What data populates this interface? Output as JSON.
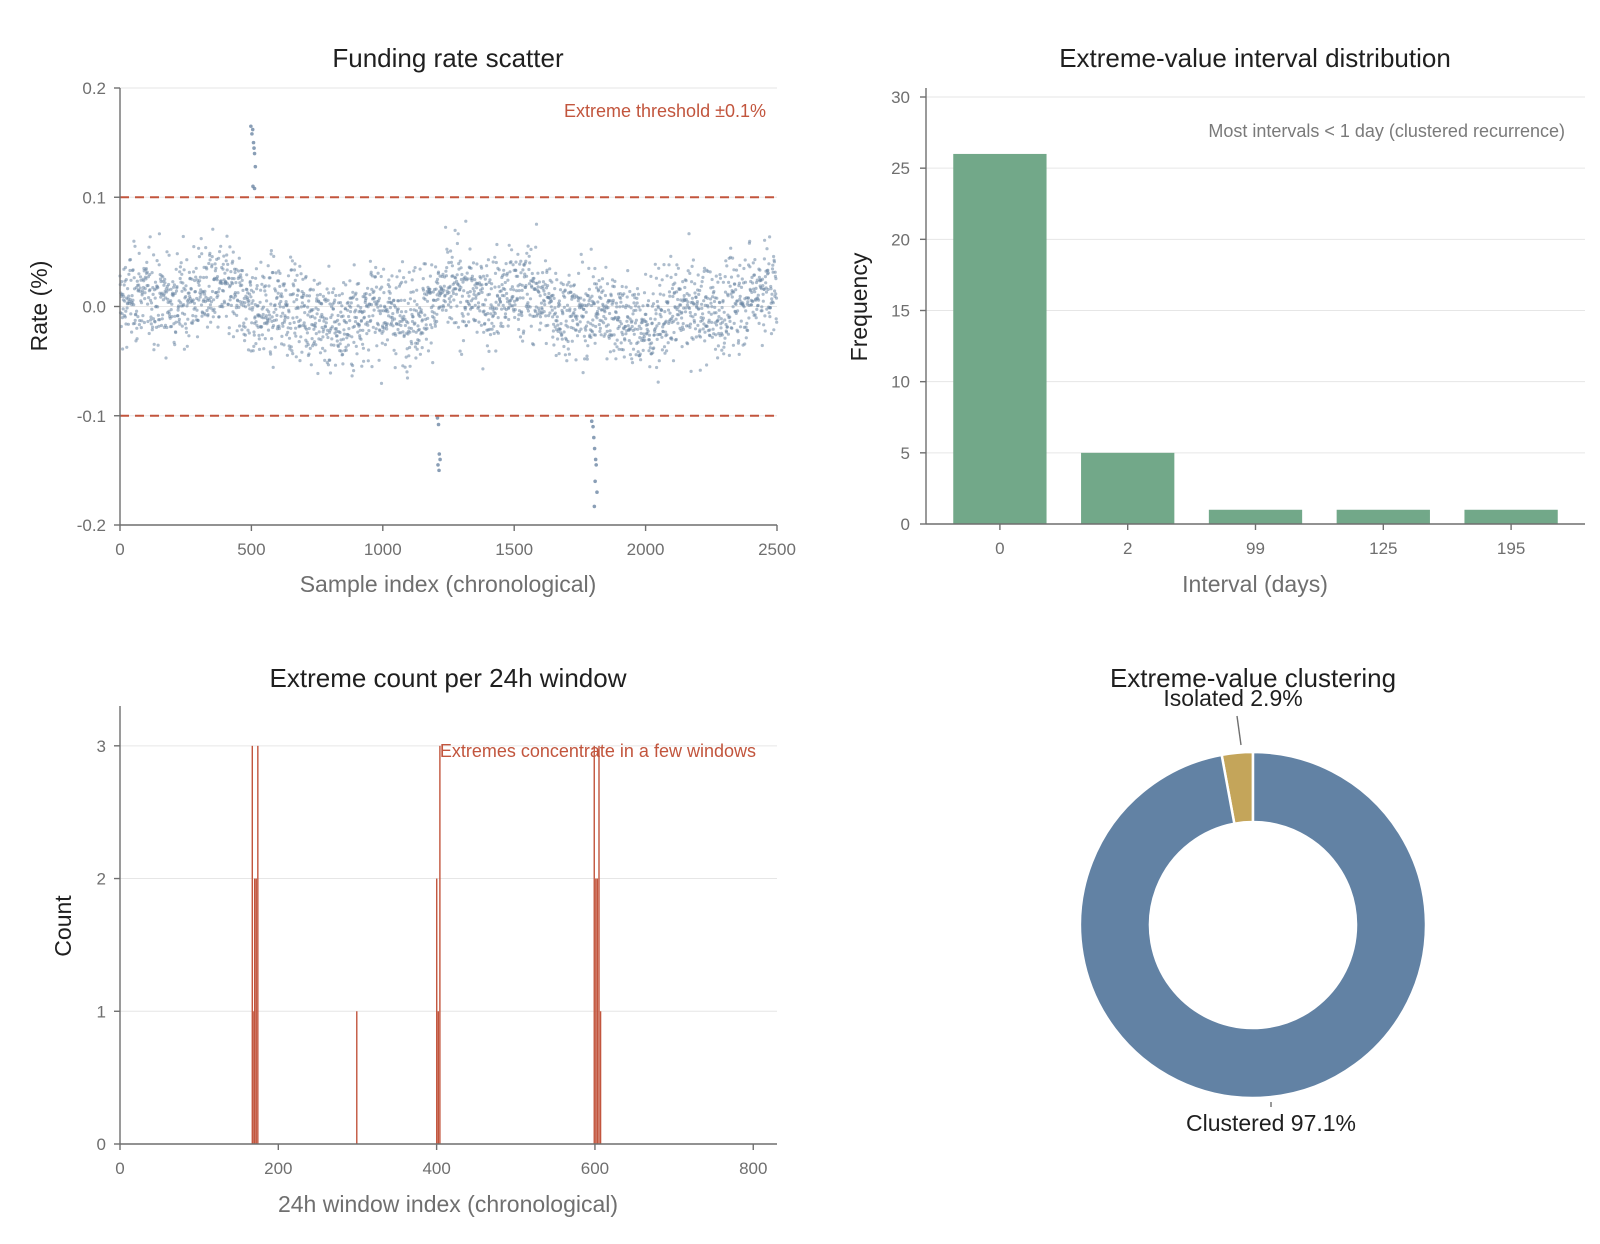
{
  "colors": {
    "scatter": "#6b86a4",
    "threshold": "#c2553d",
    "bar_green": "#72a889",
    "window_bar": "#c2553d",
    "pie_clustered": "#6282a4",
    "pie_isolated": "#c4a55a"
  },
  "chart_data": [
    {
      "type": "scatter",
      "title": "Funding rate scatter",
      "xlabel": "Sample index (chronological)",
      "ylabel": "Rate (%)",
      "xlim": [
        0,
        2500
      ],
      "ylim": [
        -0.2,
        0.2
      ],
      "xticks": [
        "0",
        "500",
        "1000",
        "1500",
        "2000",
        "2500"
      ],
      "yticks": [
        "-0.2",
        "-0.1",
        "0.0",
        "0.1",
        "0.2"
      ],
      "threshold": [
        0.1,
        -0.1
      ],
      "annotation": "Extreme threshold ±0.1%",
      "extreme_points": [
        {
          "x": 498,
          "y": 0.165
        },
        {
          "x": 502,
          "y": 0.158
        },
        {
          "x": 505,
          "y": 0.162
        },
        {
          "x": 508,
          "y": 0.15
        },
        {
          "x": 510,
          "y": 0.145
        },
        {
          "x": 512,
          "y": 0.14
        },
        {
          "x": 515,
          "y": 0.128
        },
        {
          "x": 506,
          "y": 0.11
        },
        {
          "x": 512,
          "y": 0.108
        },
        {
          "x": 1208,
          "y": -0.102
        },
        {
          "x": 1212,
          "y": -0.108
        },
        {
          "x": 1215,
          "y": -0.135
        },
        {
          "x": 1218,
          "y": -0.14
        },
        {
          "x": 1210,
          "y": -0.145
        },
        {
          "x": 1214,
          "y": -0.15
        },
        {
          "x": 1795,
          "y": -0.105
        },
        {
          "x": 1800,
          "y": -0.11
        },
        {
          "x": 1803,
          "y": -0.12
        },
        {
          "x": 1806,
          "y": -0.13
        },
        {
          "x": 1810,
          "y": -0.14
        },
        {
          "x": 1812,
          "y": -0.145
        },
        {
          "x": 1808,
          "y": -0.16
        },
        {
          "x": 1815,
          "y": -0.17
        },
        {
          "x": 1805,
          "y": -0.183
        }
      ],
      "background_points": "approx. 2500 samples, mostly within ±0.06"
    },
    {
      "type": "bar",
      "title": "Extreme-value interval distribution",
      "xlabel": "Interval (days)",
      "ylabel": "Frequency",
      "categories": [
        "0",
        "2",
        "99",
        "125",
        "195"
      ],
      "values": [
        26,
        5,
        1,
        1,
        1
      ],
      "ylim": [
        0,
        30
      ],
      "yticks": [
        "0",
        "5",
        "10",
        "15",
        "20",
        "25",
        "30"
      ],
      "annotation": "Most intervals < 1 day (clustered recurrence)"
    },
    {
      "type": "bar",
      "title": "Extreme count per 24h window",
      "xlabel": "24h window index (chronological)",
      "ylabel": "Count",
      "xlim": [
        0,
        830
      ],
      "ylim": [
        0,
        3.3
      ],
      "xticks": [
        "0",
        "200",
        "400",
        "600",
        "800"
      ],
      "yticks": [
        "0",
        "1",
        "2",
        "3"
      ],
      "annotation": "Extremes concentrate in a few windows",
      "points": [
        {
          "x": 167,
          "y": 3
        },
        {
          "x": 169,
          "y": 1
        },
        {
          "x": 170,
          "y": 2
        },
        {
          "x": 172,
          "y": 2
        },
        {
          "x": 174,
          "y": 3
        },
        {
          "x": 299,
          "y": 1
        },
        {
          "x": 400,
          "y": 2
        },
        {
          "x": 402,
          "y": 1
        },
        {
          "x": 404,
          "y": 3
        },
        {
          "x": 599,
          "y": 3
        },
        {
          "x": 601,
          "y": 2
        },
        {
          "x": 603,
          "y": 2
        },
        {
          "x": 605,
          "y": 3
        },
        {
          "x": 607,
          "y": 1
        }
      ]
    },
    {
      "type": "pie",
      "title": "Extreme-value clustering",
      "slices": [
        {
          "label": "Isolated 2.9%",
          "value": 2.9,
          "color": "#c4a55a"
        },
        {
          "label": "Clustered 97.1%",
          "value": 97.1,
          "color": "#6282a4"
        }
      ]
    }
  ]
}
